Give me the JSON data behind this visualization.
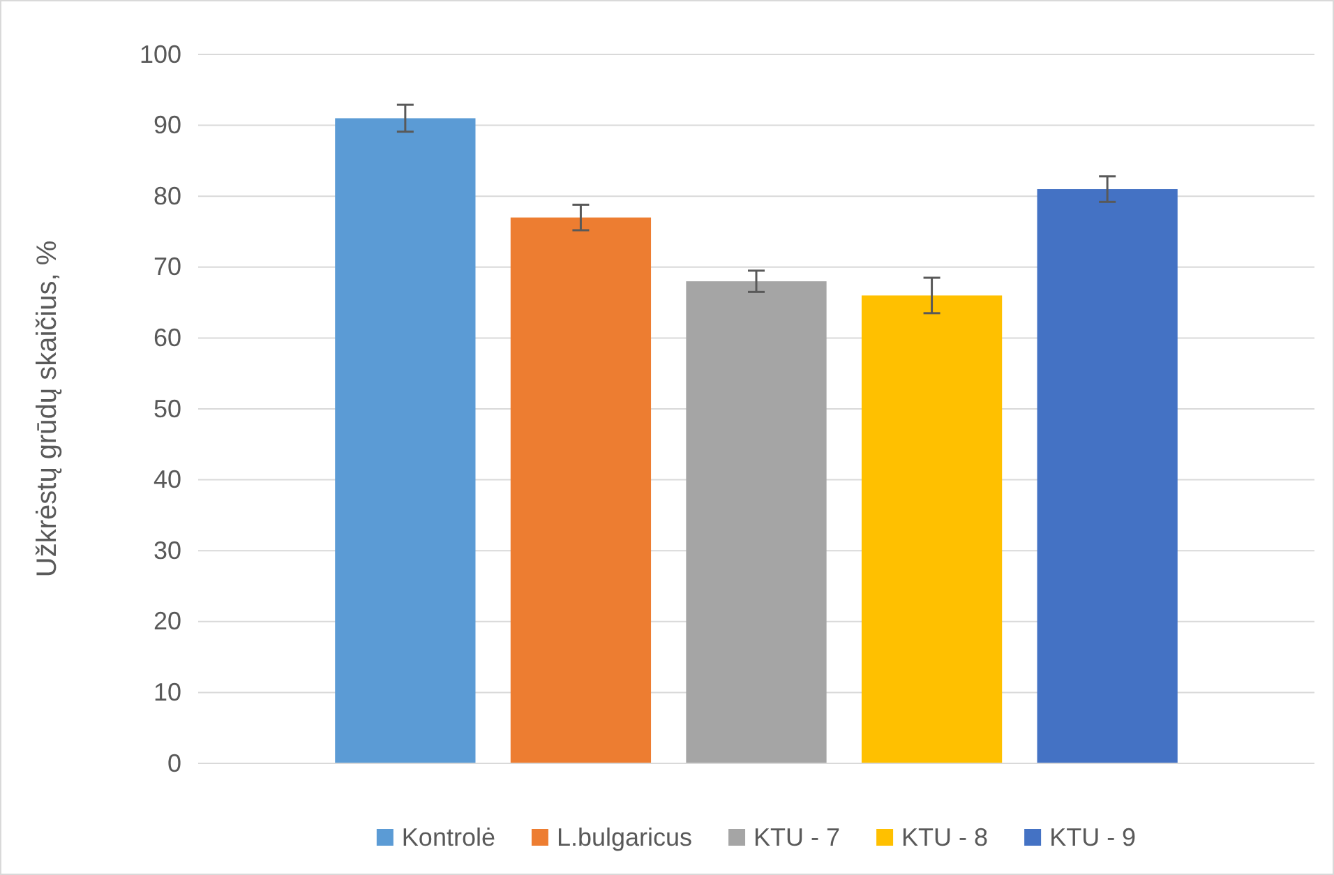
{
  "chart_data": {
    "type": "bar",
    "ylabel": "Užkrėstų grūdų skaičius, %",
    "categories": [
      null
    ],
    "series": [
      {
        "name": "Kontrolė",
        "color": "#5b9bd5",
        "values": [
          91
        ],
        "errors": [
          1.9
        ]
      },
      {
        "name": "L.bulgaricus",
        "color": "#ed7d31",
        "values": [
          77
        ],
        "errors": [
          1.8
        ]
      },
      {
        "name": "KTU - 7",
        "color": "#a5a5a5",
        "values": [
          68
        ],
        "errors": [
          1.5
        ]
      },
      {
        "name": "KTU - 8",
        "color": "#ffc000",
        "values": [
          66
        ],
        "errors": [
          2.5
        ]
      },
      {
        "name": "KTU - 9",
        "color": "#4472c4",
        "values": [
          81
        ],
        "errors": [
          1.8
        ]
      }
    ],
    "ylim": [
      0,
      100
    ],
    "yticks": [
      0,
      10,
      20,
      30,
      40,
      50,
      60,
      70,
      80,
      90,
      100
    ],
    "grid": "y",
    "legend": "bottom"
  }
}
